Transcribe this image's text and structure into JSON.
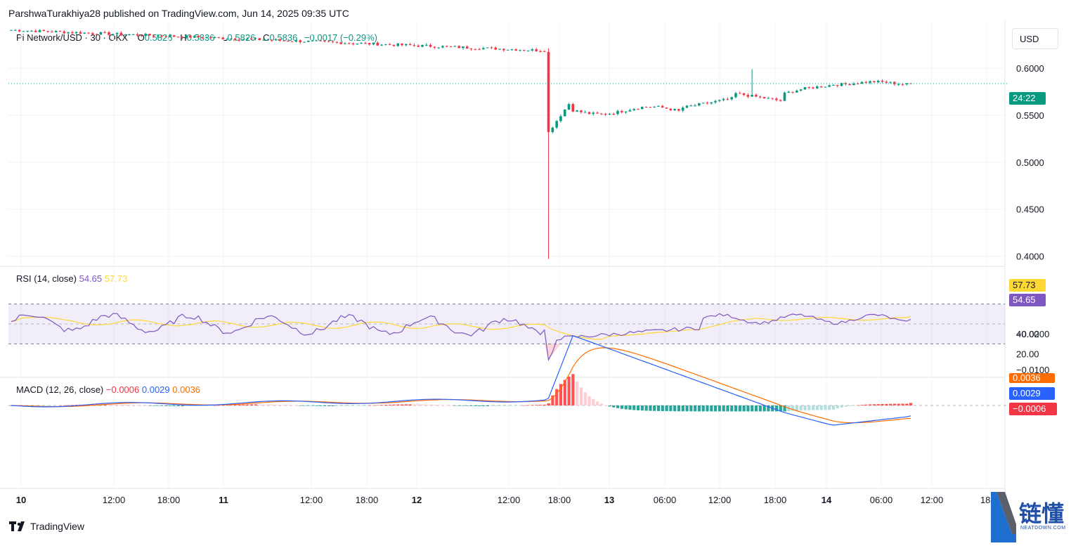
{
  "header": {
    "publisher": "ParshwaTurakhiya28 published on TradingView.com, Jun 14, 2025 09:35 UTC"
  },
  "legend": {
    "symbol": "Pi Network/USD · 30 · OKX",
    "o_label": "O",
    "o_value": "0.5826",
    "h_label": "H",
    "h_value": "0.5836",
    "l_label": "L",
    "l_value": "0.5826",
    "c_label": "C",
    "c_value": "0.5836",
    "change": "−0.0017 (−0.29%)"
  },
  "currency": "USD",
  "countdown": "24:22",
  "rsi": {
    "title": "RSI (14, close)",
    "value": "54.65",
    "ma_value": "57.73",
    "ticks": [
      "40.00",
      "20.00"
    ]
  },
  "macd": {
    "title": "MACD (12, 26, close)",
    "hist_value": "−0.0006",
    "macd_value": "0.0029",
    "signal_value": "0.0036",
    "ticks": [
      "−0.0100",
      "−0.0200"
    ]
  },
  "price_ticks": [
    "0.6000",
    "0.5500",
    "0.5000",
    "0.4500",
    "0.4000"
  ],
  "time_ticks": [
    "10",
    "12:00",
    "18:00",
    "11",
    "12:00",
    "18:00",
    "12",
    "12:00",
    "18:00",
    "13",
    "06:00",
    "12:00",
    "18:00",
    "14",
    "06:00",
    "12:00",
    "18:"
  ],
  "footer": {
    "brand": "TradingView"
  },
  "watermark": {
    "cn": "链懂",
    "en": "NEATDOWN.COM"
  },
  "colors": {
    "up": "#089981",
    "down": "#f23645",
    "rsi": "#7e57c2",
    "rsi_ma": "#fdd835",
    "macd": "#2962ff",
    "signal": "#ff6d00",
    "hist_up_strong": "#26a69a",
    "hist_up_weak": "#b2dfdb",
    "hist_down_strong": "#ff5252",
    "hist_down_weak": "#ffcdd2"
  },
  "chart_data": [
    {
      "type": "candlestick",
      "title": "Pi Network/USD · 30 · OKX",
      "ylim": [
        0.39,
        0.65
      ],
      "y_scale_ticks": [
        0.6,
        0.55,
        0.5,
        0.45,
        0.4
      ],
      "last_price": 0.5836,
      "key_levels": {
        "pre_drop": 0.618,
        "spike_low": 0.397,
        "spike_close": 0.532,
        "recovery_high": 0.599
      },
      "xlabel": "",
      "ylabel": ""
    },
    {
      "type": "line",
      "title": "RSI (14, close)",
      "ylim": [
        0,
        100
      ],
      "bands": [
        30,
        70
      ],
      "last": {
        "rsi": 54.65,
        "ma": 57.73
      }
    },
    {
      "type": "line",
      "title": "MACD (12, 26, close)",
      "last": {
        "histogram": -0.0006,
        "macd": 0.0029,
        "signal": 0.0036
      },
      "min_macd": -0.0195
    }
  ]
}
